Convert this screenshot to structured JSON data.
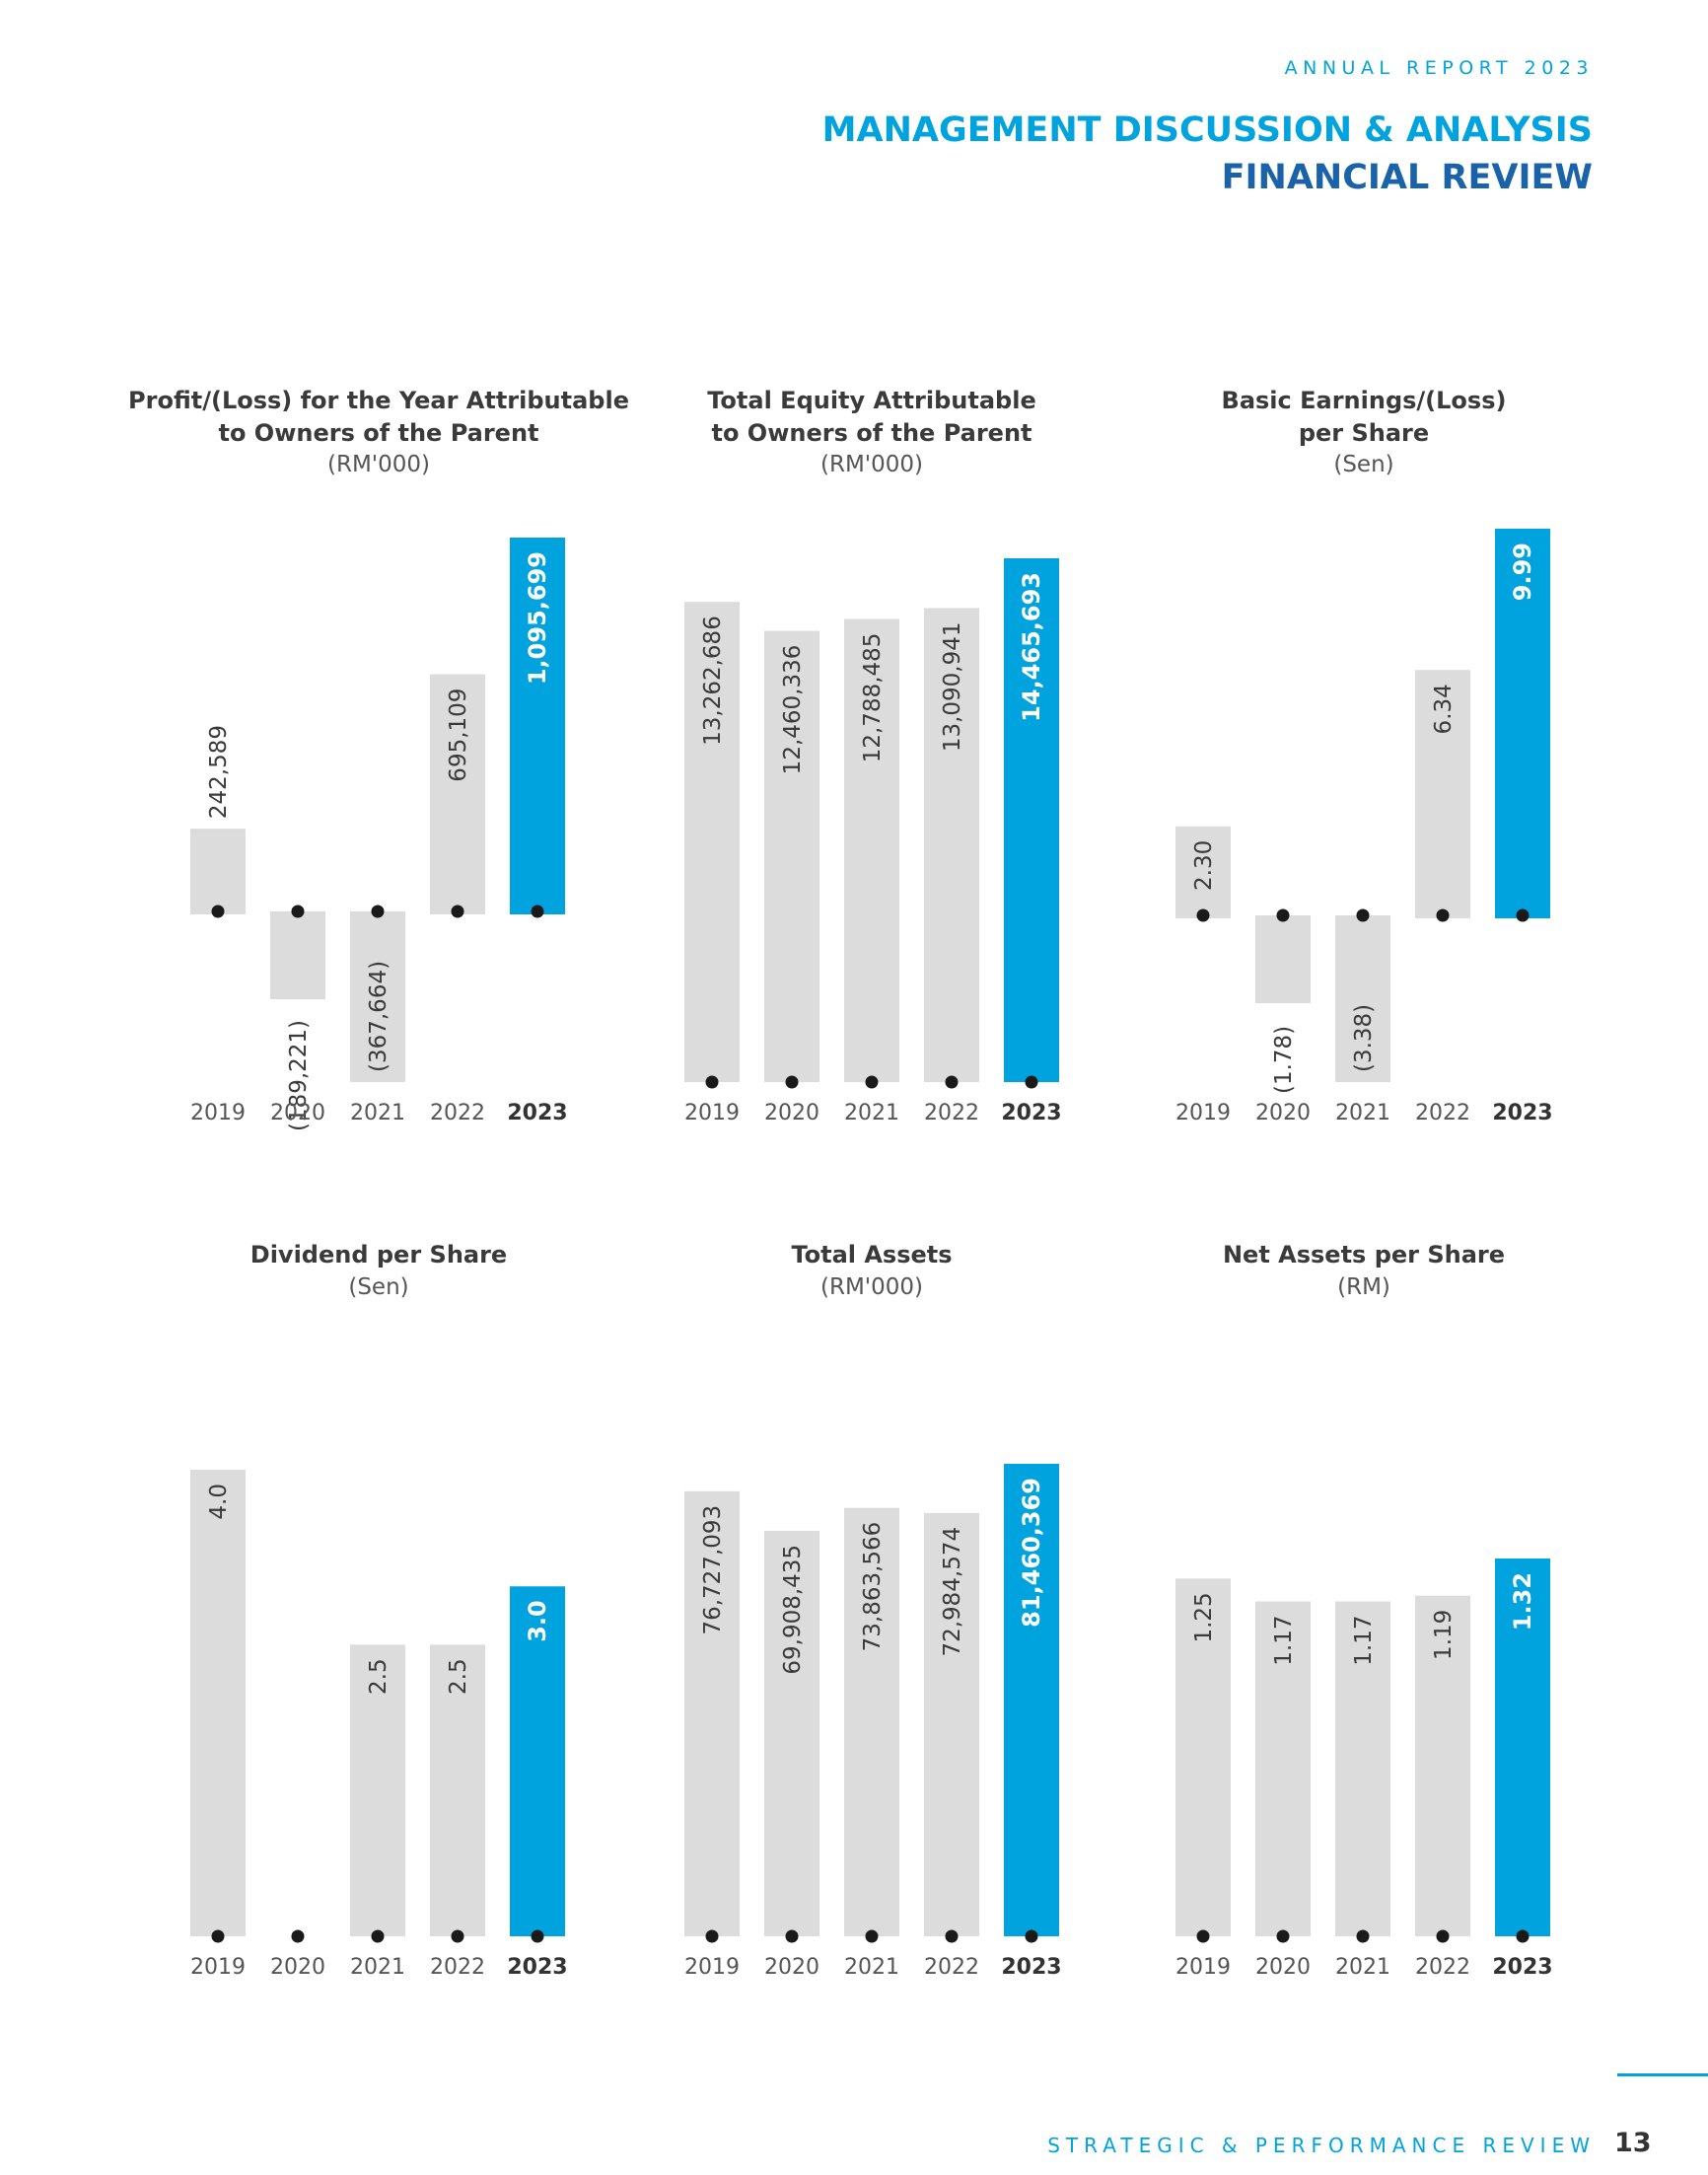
{
  "header": {
    "report_label": "ANNUAL REPORT 2023",
    "title": "MANAGEMENT DISCUSSION & ANALYSIS",
    "subtitle": "FINANCIAL REVIEW"
  },
  "footer": {
    "section": "STRATEGIC & PERFORMANCE REVIEW",
    "page_number": "13"
  },
  "colors": {
    "accent": "#00a3dd",
    "navy": "#1a63a8",
    "bar_grey": "#dcdcdd",
    "dot": "#1a1a1a"
  },
  "chart_data": [
    {
      "type": "bar",
      "title_line1": "Profit/(Loss) for the Year Attributable",
      "title_line2": "to Owners of the Parent",
      "unit": "(RM'000)",
      "categories": [
        "2019",
        "2020",
        "2021",
        "2022",
        "2023"
      ],
      "values": [
        242589,
        -189221,
        -367664,
        695109,
        1095699
      ],
      "labels": [
        "242,589",
        "(189,221)",
        "(367,664)",
        "695,109",
        "1,095,699"
      ],
      "highlight_index": 4
    },
    {
      "type": "bar",
      "title_line1": "Total Equity Attributable",
      "title_line2": "to Owners of the Parent",
      "unit": "(RM'000)",
      "categories": [
        "2019",
        "2020",
        "2021",
        "2022",
        "2023"
      ],
      "values": [
        13262686,
        12460336,
        12788485,
        13090941,
        14465693
      ],
      "labels": [
        "13,262,686",
        "12,460,336",
        "12,788,485",
        "13,090,941",
        "14,465,693"
      ],
      "highlight_index": 4
    },
    {
      "type": "bar",
      "title_line1": "Basic Earnings/(Loss)",
      "title_line2": "per Share",
      "unit": "(Sen)",
      "categories": [
        "2019",
        "2020",
        "2021",
        "2022",
        "2023"
      ],
      "values": [
        2.3,
        -1.78,
        -3.38,
        6.34,
        9.99
      ],
      "labels": [
        "2.30",
        "(1.78)",
        "(3.38)",
        "6.34",
        "9.99"
      ],
      "highlight_index": 4
    },
    {
      "type": "bar",
      "title_line1": "Dividend per Share",
      "title_line2": "",
      "unit": "(Sen)",
      "categories": [
        "2019",
        "2020",
        "2021",
        "2022",
        "2023"
      ],
      "values": [
        4.0,
        0,
        2.5,
        2.5,
        3.0
      ],
      "labels": [
        "4.0",
        "",
        "2.5",
        "2.5",
        "3.0"
      ],
      "highlight_index": 4
    },
    {
      "type": "bar",
      "title_line1": "Total Assets",
      "title_line2": "",
      "unit": "(RM'000)",
      "categories": [
        "2019",
        "2020",
        "2021",
        "2022",
        "2023"
      ],
      "values": [
        76727093,
        69908435,
        73863566,
        72984574,
        81460369
      ],
      "labels": [
        "76,727,093",
        "69,908,435",
        "73,863,566",
        "72,984,574",
        "81,460,369"
      ],
      "highlight_index": 4
    },
    {
      "type": "bar",
      "title_line1": "Net Assets per Share",
      "title_line2": "",
      "unit": "(RM)",
      "categories": [
        "2019",
        "2020",
        "2021",
        "2022",
        "2023"
      ],
      "values": [
        1.25,
        1.17,
        1.17,
        1.19,
        1.32
      ],
      "labels": [
        "1.25",
        "1.17",
        "1.17",
        "1.19",
        "1.32"
      ],
      "highlight_index": 4
    }
  ]
}
